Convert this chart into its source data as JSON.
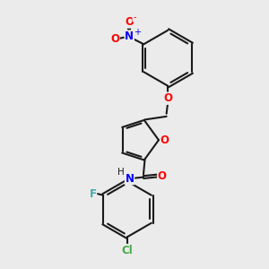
{
  "background_color": "#ebebeb",
  "bond_color": "#1a1a1a",
  "atom_colors": {
    "O": "#ff0000",
    "N": "#0000ff",
    "F": "#44aaaa",
    "Cl": "#44aa44",
    "C": "#1a1a1a",
    "H": "#1a1a1a"
  },
  "figsize": [
    3.0,
    3.0
  ],
  "dpi": 100
}
